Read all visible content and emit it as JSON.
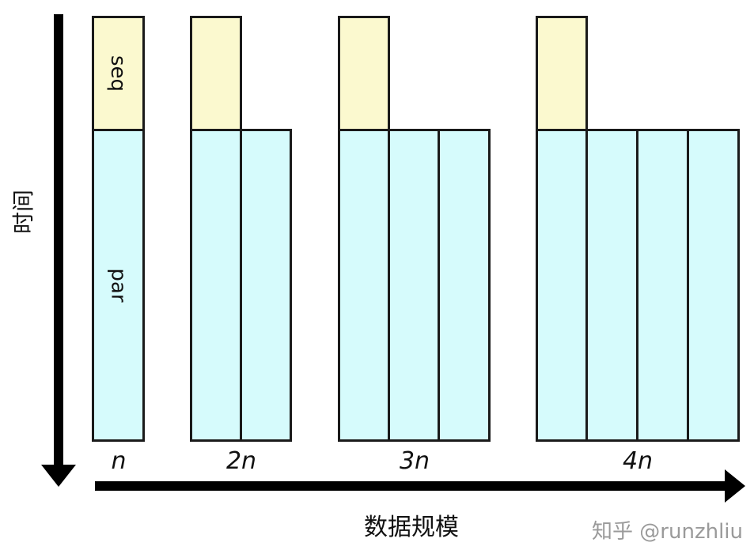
{
  "diagram": {
    "y_axis_label": "时间",
    "x_axis_label": "数据规模",
    "seq_label": "seq",
    "par_label": "par",
    "groups": [
      {
        "label": "n",
        "workers": 1
      },
      {
        "label": "2n",
        "workers": 2
      },
      {
        "label": "3n",
        "workers": 3
      },
      {
        "label": "4n",
        "workers": 4
      }
    ],
    "colors": {
      "seq": "#fbf9cf",
      "par": "#d6fbfc",
      "border": "#1a1a1a",
      "arrow": "#000000",
      "watermark": "#9a9a9a"
    }
  },
  "watermark": "知乎 @runzhliu"
}
